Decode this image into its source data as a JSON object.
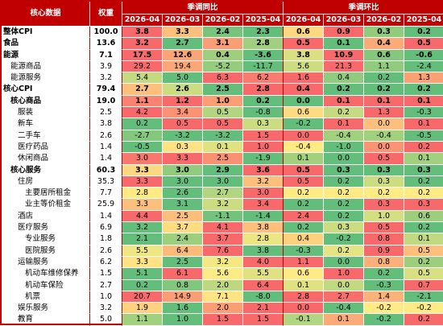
{
  "header": {
    "name": "核心数据",
    "weight": "权重",
    "groups": [
      "季调同比",
      "季调环比"
    ],
    "periods": [
      "2026-04",
      "2026-03",
      "2026-02",
      "2025-04",
      "2026-04",
      "2026-03",
      "2026-02",
      "2025-04"
    ]
  },
  "table": {
    "rows": [
      [
        "整体CPI",
        "100.0",
        "3.8",
        "3.3",
        "2.4",
        "2.3",
        "0.6",
        "0.9",
        "0.3",
        "0.2"
      ],
      [
        "食品",
        "13.6",
        "3.2",
        "2.7",
        "3.1",
        "2.8",
        "0.5",
        "0.1",
        "0.4",
        "0.5"
      ],
      [
        "能源",
        "7.1",
        "17.5",
        "12.6",
        "0.4",
        "-3.6",
        "3.8",
        "10.9",
        "0.6",
        "-0.6"
      ],
      [
        "能源商品",
        "3.9",
        "29.2",
        "19.4",
        "-5.2",
        "-11.7",
        "5.6",
        "21.3",
        "1.1",
        "-2.4"
      ],
      [
        "能源服务",
        "3.2",
        "5.4",
        "5.0",
        "6.3",
        "6.2",
        "1.6",
        "0.4",
        "0.2",
        "1.3"
      ],
      [
        "核心CPI",
        "79.4",
        "2.7",
        "2.6",
        "2.5",
        "2.8",
        "0.4",
        "0.2",
        "0.2",
        "0.2"
      ],
      [
        "核心商品",
        "19.0",
        "1.1",
        "1.2",
        "1.0",
        "0.2",
        "0.0",
        "0.1",
        "0.1",
        "0.1"
      ],
      [
        "服装",
        "2.5",
        "4.2",
        "3.4",
        "0.5",
        "-0.8",
        "0.6",
        "0.2",
        "1.3",
        "-0.3"
      ],
      [
        "新车",
        "3.8",
        "0.2",
        "0.5",
        "0.5",
        "0.3",
        "-0.2",
        "0.1",
        "0.0",
        "0.1"
      ],
      [
        "二手车",
        "2.6",
        "-2.7",
        "-3.2",
        "-3.2",
        "1.5",
        "0.0",
        "-0.4",
        "-0.4",
        "-0.5"
      ],
      [
        "医疗药品",
        "1.4",
        "-0.5",
        "0.3",
        "0.1",
        "1.0",
        "-0.4",
        "-1.0",
        "0.0",
        "0.2"
      ],
      [
        "休闲商品",
        "1.4",
        "3.0",
        "3.3",
        "2.5",
        "-1.9",
        "0.1",
        "0.0",
        "0.5",
        "0.1"
      ],
      [
        "核心服务",
        "60.3",
        "3.3",
        "3.0",
        "2.9",
        "3.6",
        "0.5",
        "0.3",
        "0.3",
        "0.3"
      ],
      [
        "住房",
        "35.3",
        "3.3",
        "3.0",
        "3.0",
        "3.2",
        "0.5",
        "0.2",
        "0.3",
        "0.2"
      ],
      [
        "主要居所租金",
        "7.7",
        "2.8",
        "2.6",
        "2.7",
        "3.0",
        "0.2",
        "0.2",
        "0.2",
        "0.2"
      ],
      [
        "业主等价租金",
        "25.9",
        "3.3",
        "3.1",
        "3.2",
        "3.4",
        "0.2",
        "0.2",
        "0.3",
        "0.3"
      ],
      [
        "酒店",
        "1.4",
        "4.4",
        "2.5",
        "-1.1",
        "-1.4",
        "2.4",
        "0.2",
        "1.0",
        "0.6"
      ],
      [
        "医疗服务",
        "6.9",
        "3.2",
        "3.7",
        "4.1",
        "3.8",
        "0.2",
        "0.3",
        "0.5",
        "0.2"
      ],
      [
        "专业服务",
        "1.8",
        "2.1",
        "2.4",
        "3.7",
        "2.8",
        "0.4",
        "-0.2",
        "0.8",
        "0.1"
      ],
      [
        "医院服务",
        "2.6",
        "5.5",
        "6.4",
        "7.6",
        "3.8",
        "-0.3",
        "0.2",
        "0.9",
        "0.5"
      ],
      [
        "运输服务",
        "6.2",
        "3.3",
        "2.5",
        "3.2",
        "4.0",
        "1.1",
        "0.0",
        "0.8",
        "0.2"
      ],
      [
        "机动车维修保养",
        "1.5",
        "5.1",
        "6.1",
        "5.6",
        "5.5",
        "0.6",
        "1.0",
        "0.2",
        "0.5"
      ],
      [
        "机动车保险",
        "2.7",
        "0.2",
        "0.8",
        "2.0",
        "6.4",
        "0.1",
        "0.0",
        "-0.3",
        "0.7"
      ],
      [
        "机票",
        "1.0",
        "20.7",
        "14.9",
        "7.1",
        "-8.0",
        "2.8",
        "2.7",
        "1.4",
        "-2.1"
      ],
      [
        "娱乐服务",
        "3.2",
        "1.9",
        "1.6",
        "2.0",
        "2.1",
        "0.0",
        "-0.4",
        "-0.2",
        "-0.2"
      ],
      [
        "教育",
        "5.0",
        "1.1",
        "1.0",
        "1.5",
        "1.5",
        "-0.1",
        "0.1",
        "-0.2",
        "0.2"
      ]
    ]
  }
}
